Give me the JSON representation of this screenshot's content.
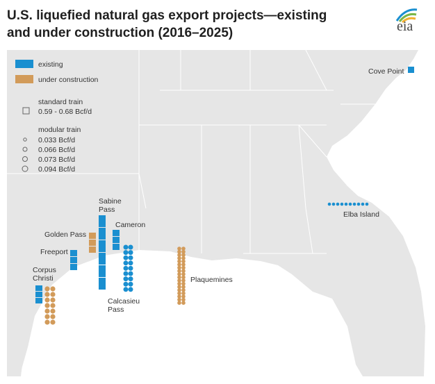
{
  "title_line1": "U.S. liquefied natural gas export projects—existing",
  "title_line2": "and under construction (2016–2025)",
  "logo_text": "eia",
  "colors": {
    "existing": "#1a8fd0",
    "under_construction": "#d29b5a",
    "land": "#e6e6e6",
    "water": "#ffffff",
    "borders": "#ffffff"
  },
  "legend": {
    "existing": "existing",
    "under_construction": "under construction",
    "standard_title": "standard train",
    "standard_range": "0.59 - 0.68 Bcf/d",
    "modular_title": "modular train",
    "modular_sizes": [
      "0.033 Bcf/d",
      "0.066 Bcf/d",
      "0.073 Bcf/d",
      "0.094 Bcf/d"
    ]
  },
  "projects": [
    {
      "name": "Cove Point",
      "existing_standard": 1,
      "construction_standard": 0,
      "existing_modular": 0,
      "construction_modular": 0
    },
    {
      "name": "Sabine Pass",
      "label_lines": [
        "Sabine",
        "Pass"
      ],
      "existing_standard": 6,
      "construction_standard": 0,
      "existing_modular": 0,
      "construction_modular": 0
    },
    {
      "name": "Golden Pass",
      "existing_standard": 0,
      "construction_standard": 3,
      "existing_modular": 0,
      "construction_modular": 0
    },
    {
      "name": "Cameron",
      "existing_standard": 3,
      "construction_standard": 0,
      "existing_modular": 0,
      "construction_modular": 0
    },
    {
      "name": "Freeport",
      "existing_standard": 3,
      "construction_standard": 0,
      "existing_modular": 0,
      "construction_modular": 0
    },
    {
      "name": "Corpus Christi",
      "label_lines": [
        "Corpus",
        "Christi"
      ],
      "existing_standard": 3,
      "construction_standard": 0,
      "existing_modular": 0,
      "construction_modular": 14
    },
    {
      "name": "Calcasieu Pass",
      "label_lines": [
        "Calcasieu",
        "Pass"
      ],
      "existing_standard": 0,
      "construction_standard": 0,
      "existing_modular": 18,
      "construction_modular": 0
    },
    {
      "name": "Plaquemines",
      "existing_standard": 0,
      "construction_standard": 0,
      "existing_modular": 0,
      "construction_modular": 36
    },
    {
      "name": "Elba Island",
      "existing_standard": 0,
      "construction_standard": 0,
      "existing_modular": 10,
      "construction_modular": 0
    }
  ]
}
